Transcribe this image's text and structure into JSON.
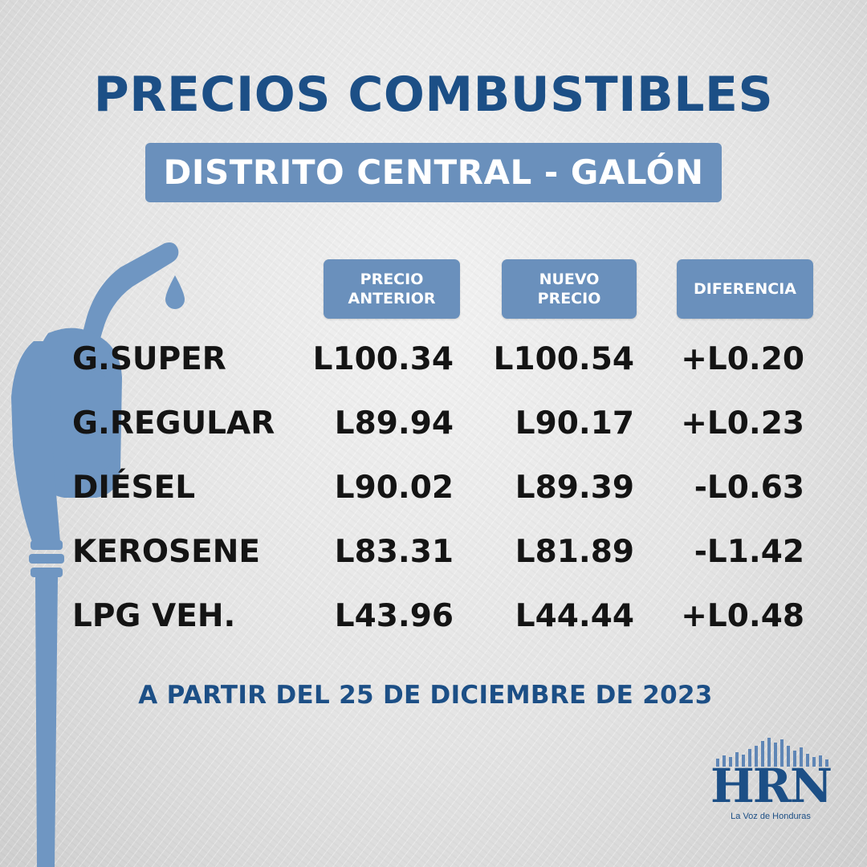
{
  "header": {
    "title": "PRECIOS COMBUSTIBLES",
    "subtitle": "DISTRITO CENTRAL - GALÓN"
  },
  "table": {
    "columns": [
      "PRECIO\nANTERIOR",
      "NUEVO\nPRECIO",
      "DIFERENCIA"
    ],
    "rows": [
      {
        "name": "G.SUPER",
        "old": "L100.34",
        "new": "L100.54",
        "diff": "+L0.20"
      },
      {
        "name": "G.REGULAR",
        "old": "L89.94",
        "new": "L90.17",
        "diff": "+L0.23"
      },
      {
        "name": "DIÉSEL",
        "old": "L90.02",
        "new": "L89.39",
        "diff": "-L0.63"
      },
      {
        "name": "KEROSENE",
        "old": "L83.31",
        "new": "L81.89",
        "diff": "-L1.42"
      },
      {
        "name": "LPG VEH.",
        "old": "L43.96",
        "new": "L44.44",
        "diff": "+L0.48"
      }
    ]
  },
  "footer": "A PARTIR DEL 25 DE DICIEMBRE DE 2023",
  "logo": {
    "name": "HRN",
    "tagline": "La Voz de Honduras"
  },
  "colors": {
    "accent": "#1c4f86",
    "label_bg": "#6a90bc",
    "text": "#141414"
  },
  "icons": {
    "pump": "fuel-nozzle-icon",
    "drop": "fuel-drop-icon"
  }
}
